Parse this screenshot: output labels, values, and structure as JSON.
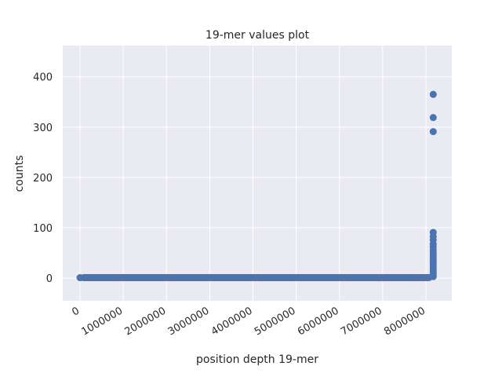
{
  "chart_data": {
    "type": "scatter",
    "title": "19-mer values plot",
    "xlabel": "position depth 19-mer",
    "ylabel": "counts",
    "xlim": [
      -400000,
      8600000
    ],
    "ylim": [
      -45,
      462
    ],
    "x_ticks": [
      0,
      1000000,
      2000000,
      3000000,
      4000000,
      5000000,
      6000000,
      7000000,
      8000000
    ],
    "x_tick_labels": [
      "0",
      "1000000",
      "2000000",
      "3000000",
      "4000000",
      "5000000",
      "6000000",
      "7000000",
      "8000000"
    ],
    "y_ticks": [
      0,
      100,
      200,
      300,
      400
    ],
    "y_tick_labels": [
      "0",
      "100",
      "200",
      "300",
      "400"
    ],
    "grid": true,
    "background": "#eaeaf2",
    "marker_color": "#4c72b0",
    "series": [
      {
        "baseline": {
          "x_start": 0,
          "x_end": 8150000,
          "y": 1
        },
        "points": [
          {
            "x": 0,
            "y": 1
          },
          {
            "x": 8170000,
            "y": 365
          },
          {
            "x": 8170000,
            "y": 319
          },
          {
            "x": 8170000,
            "y": 291
          },
          {
            "x": 8170000,
            "y": 91
          },
          {
            "x": 8170000,
            "y": 83
          },
          {
            "x": 8170000,
            "y": 76
          },
          {
            "x": 8170000,
            "y": 68
          },
          {
            "x": 8170000,
            "y": 62
          },
          {
            "x": 8170000,
            "y": 56
          },
          {
            "x": 8170000,
            "y": 50
          },
          {
            "x": 8170000,
            "y": 45
          },
          {
            "x": 8170000,
            "y": 40
          },
          {
            "x": 8170000,
            "y": 35
          },
          {
            "x": 8170000,
            "y": 30
          },
          {
            "x": 8170000,
            "y": 25
          },
          {
            "x": 8170000,
            "y": 20
          },
          {
            "x": 8170000,
            "y": 15
          },
          {
            "x": 8170000,
            "y": 10
          },
          {
            "x": 8170000,
            "y": 6
          },
          {
            "x": 8170000,
            "y": 3
          }
        ]
      }
    ]
  }
}
